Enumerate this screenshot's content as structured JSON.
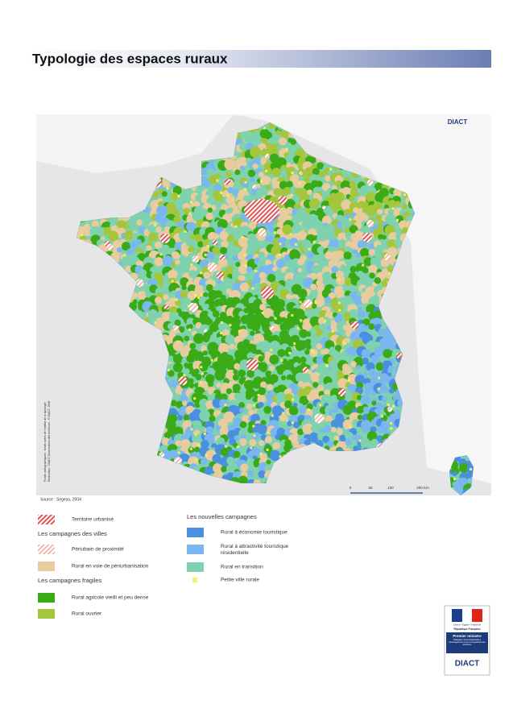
{
  "title": "Typologie des espaces ruraux",
  "map": {
    "logo": "DIACT",
    "source": "Source : Segesa, 2004",
    "credits": [
      "Fonds cartographiques : fonds cartes de l'institut de la typologie",
      "Réalisation : DIACT Observatoire des territoires - © DIACT, 2008"
    ],
    "scale": [
      "0",
      "50",
      "100",
      "200 Km"
    ]
  },
  "legend": {
    "left": [
      {
        "label": "Territoire urbanisé",
        "color": "#e05555",
        "pattern": "hatch"
      },
      {
        "heading": "Les campagnes des villes"
      },
      {
        "label": "Périubain de proximité",
        "color": "#f0a8a0",
        "pattern": "hatch-light"
      },
      {
        "label": "Rural en voie de périurbanisation",
        "color": "#e8cc9e",
        "pattern": "solid"
      },
      {
        "heading": "Les campagnes fragiles"
      },
      {
        "label": "Rural agricole vieilli et peu dense",
        "color": "#3aab17",
        "pattern": "solid"
      },
      {
        "label": "Rural ouvrier",
        "color": "#a4c63a",
        "pattern": "solid"
      }
    ],
    "right": [
      {
        "heading": "Les nouvelles campagnes"
      },
      {
        "label": "Rural à économie touristique",
        "color": "#4a8fe0",
        "pattern": "solid"
      },
      {
        "label": "Rural à attractivité touristique résidentielle",
        "color": "#7ab7ee",
        "pattern": "solid"
      },
      {
        "label": "Rural en transition",
        "color": "#7fd2ae",
        "pattern": "solid"
      },
      {
        "label": "Petite ville rurale",
        "color": "#f6ef5a",
        "pattern": "dot"
      }
    ]
  },
  "logo": {
    "motto": "Liberté • Égalité • Fraternité",
    "republic": "République Française",
    "ministry": "Premier ministre",
    "body": "Délégation interministérielle à l'aménagement et à la compétitivité des territoires",
    "name": "DIACT"
  }
}
